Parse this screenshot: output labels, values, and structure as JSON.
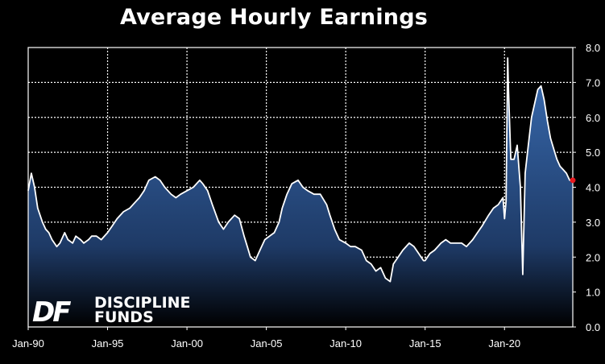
{
  "chart_data": {
    "type": "area",
    "title": "Average Hourly Earnings",
    "xlabel": "",
    "ylabel": "",
    "x_tick_labels": [
      "Jan-90",
      "Jan-95",
      "Jan-00",
      "Jan-05",
      "Jan-10",
      "Jan-15",
      "Jan-20"
    ],
    "y_tick_labels": [
      "0.0",
      "1.0",
      "2.0",
      "3.0",
      "4.0",
      "5.0",
      "6.0",
      "7.0",
      "8.0"
    ],
    "ylim": [
      0,
      8
    ],
    "y_axis_position": "right",
    "grid": true,
    "grid_style": "dotted",
    "x_start_year": 1990,
    "x_end_year": 2024.3,
    "series": [
      {
        "x": [
          1990.0,
          1990.2,
          1990.4,
          1990.6,
          1990.9,
          1991.1,
          1991.3,
          1991.5,
          1991.8,
          1992.0,
          1992.3,
          1992.5,
          1992.8,
          1993.0,
          1993.3,
          1993.5,
          1993.8,
          1994.0,
          1994.3,
          1994.6,
          1995.0,
          1995.3,
          1995.6,
          1996.0,
          1996.4,
          1996.8,
          1997.0,
          1997.3,
          1997.6,
          1998.0,
          1998.3,
          1998.6,
          1999.0,
          1999.3,
          1999.6,
          2000.0,
          2000.4,
          2000.8,
          2001.0,
          2001.3,
          2001.6,
          2002.0,
          2002.3,
          2002.6,
          2003.0,
          2003.3,
          2003.6,
          2003.8,
          2004.0,
          2004.3,
          2004.6,
          2004.9,
          2005.2,
          2005.5,
          2005.8,
          2006.0,
          2006.3,
          2006.6,
          2007.0,
          2007.3,
          2007.6,
          2008.0,
          2008.4,
          2008.8,
          2009.0,
          2009.3,
          2009.6,
          2010.0,
          2010.3,
          2010.6,
          2011.0,
          2011.3,
          2011.6,
          2011.9,
          2012.2,
          2012.5,
          2012.8,
          2013.0,
          2013.3,
          2013.6,
          2014.0,
          2014.3,
          2014.6,
          2014.9,
          2015.0,
          2015.3,
          2015.6,
          2016.0,
          2016.3,
          2016.6,
          2017.0,
          2017.3,
          2017.6,
          2018.0,
          2018.3,
          2018.6,
          2019.0,
          2019.3,
          2019.6,
          2019.9,
          2020.0,
          2020.1,
          2020.2,
          2020.25,
          2020.4,
          2020.6,
          2020.8,
          2021.0,
          2021.15,
          2021.3,
          2021.5,
          2021.7,
          2021.9,
          2022.1,
          2022.3,
          2022.5,
          2022.7,
          2022.9,
          2023.1,
          2023.3,
          2023.5,
          2023.7,
          2023.9,
          2024.1,
          2024.3
        ],
        "y": [
          3.9,
          4.4,
          4.0,
          3.4,
          3.0,
          2.8,
          2.7,
          2.5,
          2.3,
          2.4,
          2.7,
          2.5,
          2.4,
          2.6,
          2.5,
          2.4,
          2.5,
          2.6,
          2.6,
          2.5,
          2.7,
          2.9,
          3.1,
          3.3,
          3.4,
          3.6,
          3.7,
          3.9,
          4.2,
          4.3,
          4.2,
          4.0,
          3.8,
          3.7,
          3.8,
          3.9,
          4.0,
          4.2,
          4.1,
          3.9,
          3.5,
          3.0,
          2.8,
          3.0,
          3.2,
          3.1,
          2.6,
          2.3,
          2.0,
          1.9,
          2.2,
          2.5,
          2.6,
          2.7,
          3.0,
          3.4,
          3.8,
          4.1,
          4.2,
          4.0,
          3.9,
          3.8,
          3.8,
          3.5,
          3.2,
          2.8,
          2.5,
          2.4,
          2.3,
          2.3,
          2.2,
          1.9,
          1.8,
          1.6,
          1.7,
          1.4,
          1.3,
          1.8,
          2.0,
          2.2,
          2.4,
          2.3,
          2.1,
          1.9,
          1.9,
          2.1,
          2.2,
          2.4,
          2.5,
          2.4,
          2.4,
          2.4,
          2.3,
          2.5,
          2.7,
          2.9,
          3.2,
          3.4,
          3.5,
          3.7,
          3.1,
          3.6,
          7.7,
          6.8,
          4.8,
          4.8,
          5.2,
          4.0,
          1.5,
          4.4,
          5.2,
          6.0,
          6.4,
          6.8,
          6.9,
          6.5,
          5.9,
          5.4,
          5.1,
          4.8,
          4.6,
          4.5,
          4.4,
          4.2,
          4.2
        ],
        "last_point_marker_color": "#e8191e"
      }
    ]
  },
  "logo": {
    "name": "DISCIPLINE FUNDS",
    "line1": "DISCIPLINE",
    "line2": "FUNDS",
    "monogram": "DF"
  },
  "colors": {
    "background": "#000000",
    "plot_border": "#ffffff",
    "line": "#ffffff",
    "area_top": "#3a6db3",
    "area_bottom": "#000000",
    "last_point": "#e8191e"
  }
}
